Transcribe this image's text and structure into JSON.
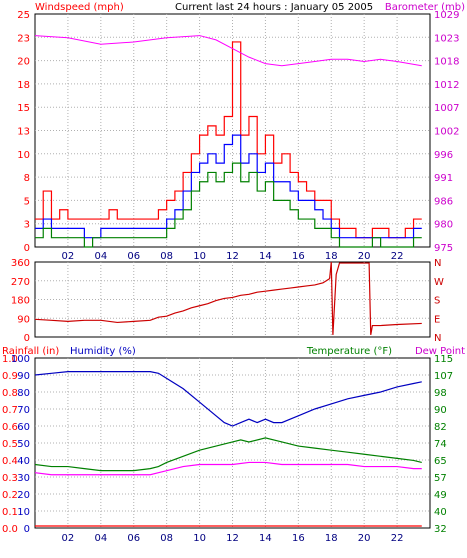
{
  "header": {
    "left_label": "Windspeed (mph)",
    "center_label": "Current last 24 hours : January 05 2005",
    "right_label": "Barometer (mb)"
  },
  "colors": {
    "windspeed": "#ff0000",
    "gust": "#ff0000",
    "avg_wind": "#0000ff",
    "direction_trace": "#008000",
    "barometer": "#ff00ff",
    "winddir": "#cc0000",
    "humidity": "#0000c0",
    "temperature": "#008000",
    "dewpoint": "#ff00ff",
    "rainfall": "#ff0000"
  },
  "chart_data": [
    {
      "type": "line",
      "title": "Current last 24 hours : January 05 2005",
      "x_ticks": [
        "02",
        "04",
        "06",
        "08",
        "10",
        "12",
        "14",
        "16",
        "18",
        "20",
        "22"
      ],
      "xlim": [
        0,
        24
      ],
      "y_left": {
        "label": "Windspeed (mph)",
        "ticks": [
          "0",
          "3",
          "5",
          "8",
          "10",
          "13",
          "15",
          "18",
          "20",
          "23",
          "25"
        ],
        "lim": [
          0,
          25
        ]
      },
      "y_right": {
        "label": "Barometer (mb)",
        "ticks": [
          "975",
          "980",
          "986",
          "991",
          "996",
          "1002",
          "1007",
          "1012",
          "1018",
          "1023",
          "1029"
        ],
        "lim": [
          975,
          1029
        ]
      },
      "series": [
        {
          "name": "Windspeed (mph)",
          "kind": "gust",
          "x": [
            0,
            0.5,
            1,
            1.5,
            2,
            2.5,
            3,
            3.5,
            4,
            4.5,
            5,
            5.5,
            6,
            6.5,
            7,
            7.5,
            8,
            8.5,
            9,
            9.5,
            10,
            10.5,
            11,
            11.5,
            12,
            12.5,
            13,
            13.5,
            14,
            14.5,
            15,
            15.5,
            16,
            16.5,
            17,
            17.5,
            18,
            18.5,
            19,
            19.5,
            20,
            20.5,
            21,
            21.5,
            22,
            22.5,
            23
          ],
          "values": [
            3,
            6,
            3,
            4,
            3,
            3,
            3,
            3,
            3,
            4,
            3,
            3,
            3,
            3,
            3,
            4,
            5,
            6,
            8,
            10,
            12,
            13,
            12,
            14,
            22,
            12,
            14,
            10,
            12,
            9,
            10,
            8,
            7,
            6,
            5,
            5,
            3,
            2,
            2,
            1,
            1,
            2,
            2,
            1,
            1,
            2,
            3
          ]
        },
        {
          "name": "Avg wind",
          "kind": "avg",
          "x": [
            0,
            0.5,
            1,
            1.5,
            2,
            2.5,
            3,
            3.5,
            4,
            4.5,
            5,
            5.5,
            6,
            6.5,
            7,
            7.5,
            8,
            8.5,
            9,
            9.5,
            10,
            10.5,
            11,
            11.5,
            12,
            12.5,
            13,
            13.5,
            14,
            14.5,
            15,
            15.5,
            16,
            16.5,
            17,
            17.5,
            18,
            18.5,
            19,
            19.5,
            20,
            20.5,
            21,
            21.5,
            22,
            22.5,
            23
          ],
          "values": [
            2,
            3,
            2,
            2,
            2,
            2,
            1,
            1,
            2,
            2,
            2,
            2,
            2,
            2,
            2,
            2,
            3,
            4,
            6,
            8,
            9,
            10,
            9,
            11,
            12,
            9,
            10,
            8,
            9,
            7,
            7,
            6,
            5,
            5,
            4,
            3,
            2,
            1,
            1,
            1,
            1,
            1,
            1,
            1,
            1,
            1,
            2
          ]
        },
        {
          "name": "Direction trace",
          "kind": "dir",
          "x": [
            0,
            0.5,
            1,
            1.5,
            2,
            2.5,
            3,
            3.5,
            4,
            4.5,
            5,
            5.5,
            6,
            6.5,
            7,
            7.5,
            8,
            8.5,
            9,
            9.5,
            10,
            10.5,
            11,
            11.5,
            12,
            12.5,
            13,
            13.5,
            14,
            14.5,
            15,
            15.5,
            16,
            16.5,
            17,
            17.5,
            18,
            18.5,
            19,
            19.5,
            20,
            20.5,
            21,
            21.5,
            22,
            22.5,
            23
          ],
          "values": [
            1,
            2,
            1,
            1,
            1,
            1,
            0,
            1,
            1,
            1,
            1,
            1,
            1,
            1,
            1,
            1,
            2,
            3,
            4,
            6,
            7,
            8,
            7,
            8,
            9,
            7,
            8,
            6,
            7,
            5,
            5,
            4,
            3,
            3,
            2,
            2,
            1,
            0,
            0,
            0,
            0,
            1,
            0,
            0,
            0,
            0,
            1
          ]
        },
        {
          "name": "Barometer (mb)",
          "kind": "baro",
          "x": [
            0,
            2,
            4,
            6,
            8,
            10,
            11,
            12,
            13,
            14,
            15,
            16,
            17,
            18,
            19,
            20,
            21,
            22,
            23.5
          ],
          "values": [
            1024,
            1023.5,
            1022,
            1022.5,
            1023.5,
            1024,
            1023,
            1021,
            1019,
            1017.5,
            1017,
            1017.5,
            1018,
            1018.5,
            1018.5,
            1018,
            1018.5,
            1018,
            1017
          ]
        }
      ]
    },
    {
      "type": "scatter",
      "title": "",
      "x_ticks": [],
      "xlim": [
        0,
        24
      ],
      "y_left": {
        "ticks": [
          "0",
          "90",
          "180",
          "270",
          "360"
        ],
        "lim": [
          0,
          360
        ]
      },
      "y_right": {
        "ticks": [
          "N",
          "E",
          "S",
          "W",
          "N"
        ]
      },
      "series": [
        {
          "name": "Wind direction",
          "x": [
            0,
            1,
            2,
            3,
            4,
            5,
            6,
            7,
            7.5,
            8,
            8.5,
            9,
            9.5,
            10,
            10.5,
            11,
            11.5,
            12,
            12.5,
            13,
            13.5,
            14,
            14.5,
            15,
            15.5,
            16,
            16.5,
            17,
            17.5,
            17.9,
            18,
            18.1,
            18.3,
            18.5,
            19,
            19.5,
            20,
            20.3,
            20.4,
            20.5,
            21,
            22,
            23.5
          ],
          "values": [
            85,
            80,
            75,
            80,
            80,
            70,
            75,
            80,
            95,
            100,
            115,
            125,
            140,
            150,
            160,
            175,
            185,
            190,
            200,
            205,
            215,
            220,
            225,
            230,
            235,
            240,
            245,
            250,
            260,
            280,
            360,
            10,
            300,
            355,
            355,
            355,
            355,
            355,
            10,
            55,
            55,
            60,
            65
          ]
        }
      ]
    },
    {
      "type": "line",
      "title": "",
      "x_ticks": [
        "02",
        "04",
        "06",
        "08",
        "10",
        "12",
        "14",
        "16",
        "18",
        "20",
        "22"
      ],
      "xlim": [
        0,
        24
      ],
      "y_left_rain": {
        "label": "Rainfall (in)",
        "ticks": [
          "0.0",
          "0.1",
          "0.2",
          "0.3",
          "0.4",
          "0.5",
          "0.6",
          "0.7",
          "0.8",
          "0.9",
          "1.0"
        ],
        "lim": [
          0,
          1
        ]
      },
      "y_left_hum": {
        "label": "Humidity (%)",
        "ticks": [
          "0",
          "10",
          "20",
          "30",
          "40",
          "50",
          "60",
          "70",
          "80",
          "90",
          "100"
        ],
        "lim": [
          0,
          100
        ]
      },
      "y_right": {
        "label": "Temperature (°F)",
        "ticks": [
          "32",
          "40",
          "49",
          "57",
          "65",
          "74",
          "82",
          "90",
          "98",
          "107",
          "115"
        ],
        "lim": [
          32,
          115
        ]
      },
      "right_label_2": "Dew Point",
      "series": [
        {
          "name": "Humidity (%)",
          "x": [
            0,
            1,
            2,
            3,
            4,
            5,
            6,
            7,
            7.5,
            8,
            9,
            10,
            11,
            11.5,
            12,
            12.5,
            13,
            13.5,
            14,
            14.5,
            15,
            15.5,
            16,
            17,
            18,
            19,
            20,
            21,
            22,
            23,
            23.5
          ],
          "values": [
            90,
            91,
            92,
            92,
            92,
            92,
            92,
            92,
            91,
            88,
            82,
            74,
            66,
            62,
            60,
            62,
            64,
            62,
            64,
            62,
            62,
            64,
            66,
            70,
            73,
            76,
            78,
            80,
            83,
            85,
            86
          ]
        },
        {
          "name": "Temperature (°F)",
          "x": [
            0,
            1,
            2,
            3,
            4,
            5,
            6,
            7,
            7.5,
            8,
            9,
            10,
            11,
            12,
            12.5,
            13,
            14,
            15,
            16,
            17,
            18,
            19,
            20,
            21,
            22,
            23,
            23.5
          ],
          "values": [
            63,
            62,
            62,
            61,
            60,
            60,
            60,
            61,
            62,
            64,
            67,
            70,
            72,
            74,
            75,
            74,
            76,
            74,
            72,
            71,
            70,
            69,
            68,
            67,
            66,
            65,
            64
          ]
        },
        {
          "name": "Dew Point",
          "x": [
            0,
            1,
            2,
            3,
            4,
            5,
            6,
            7,
            7.5,
            8,
            9,
            10,
            11,
            12,
            13,
            14,
            15,
            16,
            17,
            18,
            19,
            20,
            21,
            22,
            23,
            23.5
          ],
          "values": [
            59,
            58,
            58,
            58,
            58,
            58,
            58,
            58,
            59,
            60,
            62,
            63,
            63,
            63,
            64,
            64,
            63,
            63,
            63,
            63,
            63,
            62,
            62,
            62,
            61,
            61
          ]
        },
        {
          "name": "Rainfall (in)",
          "x": [
            0,
            23.5
          ],
          "values": [
            0,
            0
          ]
        }
      ]
    }
  ]
}
